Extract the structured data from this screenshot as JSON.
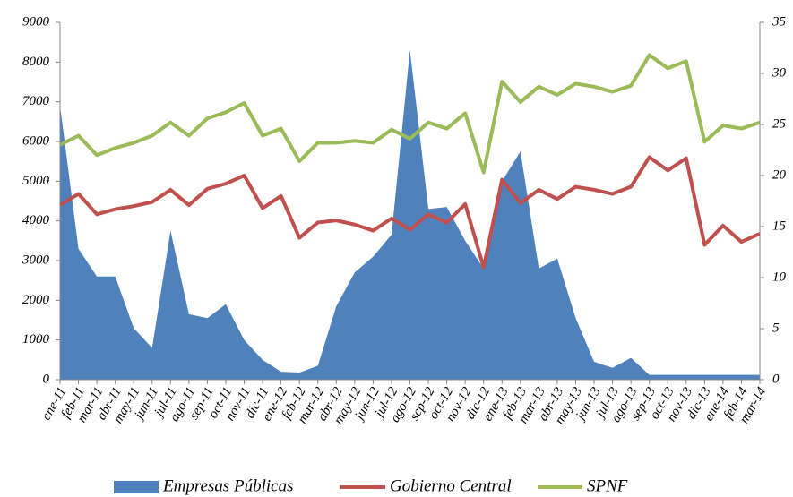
{
  "chart_data": {
    "type": "area_line",
    "categories": [
      "ene-11",
      "feb-11",
      "mar-11",
      "abr-11",
      "may-11",
      "jun-11",
      "jul-11",
      "ago-11",
      "sep-11",
      "oct-11",
      "nov-11",
      "dic-11",
      "ene-12",
      "feb-12",
      "mar-12",
      "abr-12",
      "may-12",
      "jun-12",
      "jul-12",
      "ago-12",
      "sep-12",
      "oct-12",
      "nov-12",
      "dic-12",
      "ene-13",
      "feb-13",
      "mar-13",
      "abr-13",
      "may-13",
      "jun-13",
      "jul-13",
      "ago-13",
      "sep-13",
      "oct-13",
      "nov-13",
      "dic-13",
      "ene-14",
      "feb-14",
      "mar-14"
    ],
    "series": [
      {
        "name": "Empresas Públicas",
        "color": "#4f81bd",
        "kind": "area",
        "values": [
          6900,
          3300,
          2600,
          2600,
          1300,
          800,
          3750,
          1650,
          1550,
          1900,
          1000,
          500,
          200,
          180,
          350,
          1850,
          2700,
          3100,
          3650,
          8300,
          4300,
          4350,
          3500,
          2800,
          5000,
          5750,
          2800,
          3050,
          1550,
          450,
          300,
          550,
          120,
          120,
          120,
          120,
          120,
          120,
          120
        ]
      },
      {
        "name": "Gobierno Central",
        "color": "#c0504d",
        "kind": "line",
        "axis": "y2",
        "values": [
          17.1,
          18.2,
          16.2,
          16.7,
          17.0,
          17.4,
          18.6,
          17.1,
          18.7,
          19.2,
          20.0,
          16.8,
          18.0,
          13.9,
          15.4,
          15.6,
          15.2,
          14.6,
          15.8,
          14.7,
          16.2,
          15.4,
          17.2,
          11.0,
          19.6,
          17.3,
          18.6,
          17.7,
          18.9,
          18.6,
          18.2,
          18.9,
          21.8,
          20.5,
          21.7,
          13.2,
          15.1,
          13.5,
          14.3
        ]
      },
      {
        "name": "SPNF",
        "color": "#9bbb59",
        "kind": "line",
        "axis": "y2",
        "values": [
          23.0,
          23.9,
          22.0,
          22.7,
          23.2,
          23.9,
          25.2,
          23.9,
          25.6,
          26.2,
          27.1,
          23.9,
          24.6,
          21.4,
          23.2,
          23.2,
          23.4,
          23.2,
          24.5,
          23.6,
          25.2,
          24.6,
          26.1,
          20.3,
          29.2,
          27.2,
          28.7,
          27.9,
          29.0,
          28.7,
          28.2,
          28.8,
          31.8,
          30.5,
          31.2,
          23.3,
          24.9,
          24.6,
          25.2
        ]
      }
    ],
    "ylim": [
      0,
      9000
    ],
    "yticks": [
      0,
      1000,
      2000,
      3000,
      4000,
      5000,
      6000,
      7000,
      8000,
      9000
    ],
    "y2lim": [
      0,
      35
    ],
    "y2ticks": [
      0,
      5,
      10,
      15,
      20,
      25,
      30,
      35
    ]
  }
}
